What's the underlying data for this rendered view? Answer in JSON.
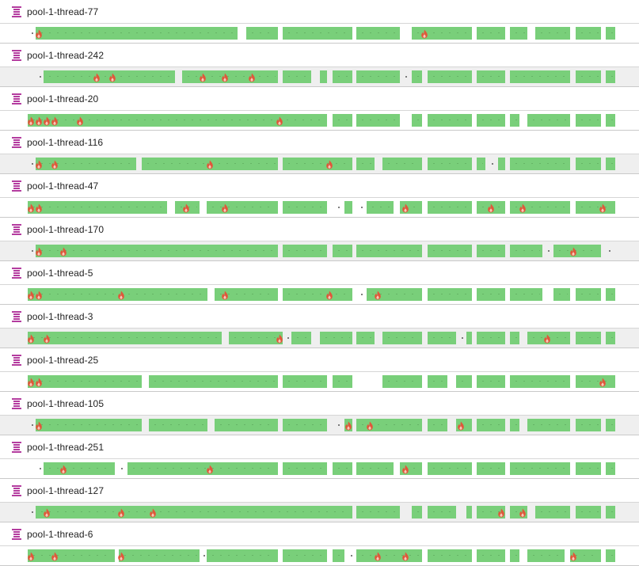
{
  "app": {
    "view": "Thread timeline"
  },
  "colors": {
    "running": "#79cf7a",
    "thread_icon": "#b43c9f",
    "flame": "#e0573a"
  },
  "threads": [
    {
      "name": "pool-1-thread-77",
      "segments": [
        [
          45,
          300
        ],
        [
          311,
          351
        ],
        [
          357,
          445
        ],
        [
          450,
          505
        ],
        [
          520,
          596
        ],
        [
          602,
          638
        ],
        [
          644,
          666
        ],
        [
          676,
          720
        ],
        [
          727,
          759
        ],
        [
          765,
          777
        ]
      ],
      "dots": [
        40
      ],
      "flames": [
        49,
        536
      ]
    },
    {
      "name": "pool-1-thread-242",
      "segments": [
        [
          55,
          221
        ],
        [
          230,
          351
        ],
        [
          357,
          393
        ],
        [
          404,
          413
        ],
        [
          420,
          445
        ],
        [
          450,
          505
        ],
        [
          520,
          533
        ],
        [
          540,
          596
        ],
        [
          602,
          638
        ],
        [
          644,
          720
        ],
        [
          727,
          759
        ],
        [
          765,
          777
        ]
      ],
      "dots": [
        50,
        512
      ],
      "flames": [
        122,
        142,
        256,
        284,
        318
      ]
    },
    {
      "name": "pool-1-thread-20",
      "segments": [
        [
          35,
          413
        ],
        [
          420,
          445
        ],
        [
          450,
          505
        ],
        [
          520,
          533
        ],
        [
          540,
          596
        ],
        [
          602,
          638
        ],
        [
          644,
          656
        ],
        [
          666,
          720
        ],
        [
          727,
          759
        ],
        [
          765,
          777
        ]
      ],
      "dots": [],
      "flames": [
        39,
        49,
        59,
        69,
        101,
        353
      ]
    },
    {
      "name": "pool-1-thread-116",
      "segments": [
        [
          45,
          172
        ],
        [
          179,
          351
        ],
        [
          357,
          445
        ],
        [
          450,
          473
        ],
        [
          483,
          533
        ],
        [
          540,
          596
        ],
        [
          602,
          613
        ],
        [
          629,
          638
        ],
        [
          644,
          720
        ],
        [
          727,
          759
        ],
        [
          765,
          777
        ]
      ],
      "dots": [
        40,
        621
      ],
      "flames": [
        49,
        69,
        265,
        416
      ]
    },
    {
      "name": "pool-1-thread-47",
      "segments": [
        [
          35,
          211
        ],
        [
          221,
          252
        ],
        [
          261,
          351
        ],
        [
          357,
          413
        ],
        [
          435,
          445
        ],
        [
          463,
          497
        ],
        [
          505,
          533
        ],
        [
          540,
          596
        ],
        [
          602,
          638
        ],
        [
          644,
          720
        ],
        [
          727,
          777
        ]
      ],
      "dots": [
        427,
        456
      ],
      "flames": [
        39,
        49,
        235,
        284,
        512,
        620,
        660,
        761
      ]
    },
    {
      "name": "pool-1-thread-170",
      "segments": [
        [
          45,
          351
        ],
        [
          357,
          413
        ],
        [
          420,
          445
        ],
        [
          450,
          533
        ],
        [
          540,
          596
        ],
        [
          602,
          638
        ],
        [
          644,
          685
        ],
        [
          699,
          759
        ]
      ],
      "dots": [
        40,
        692,
        769
      ],
      "flames": [
        49,
        80,
        724
      ]
    },
    {
      "name": "pool-1-thread-5",
      "segments": [
        [
          35,
          262
        ],
        [
          271,
          351
        ],
        [
          357,
          445
        ],
        [
          463,
          533
        ],
        [
          540,
          596
        ],
        [
          602,
          638
        ],
        [
          644,
          685
        ],
        [
          699,
          720
        ],
        [
          727,
          759
        ],
        [
          765,
          777
        ]
      ],
      "dots": [
        456
      ],
      "flames": [
        39,
        49,
        153,
        284,
        416,
        477
      ]
    },
    {
      "name": "pool-1-thread-3",
      "segments": [
        [
          35,
          280
        ],
        [
          289,
          357
        ],
        [
          368,
          393
        ],
        [
          404,
          445
        ],
        [
          450,
          473
        ],
        [
          483,
          533
        ],
        [
          540,
          576
        ],
        [
          589,
          596
        ],
        [
          602,
          638
        ],
        [
          644,
          656
        ],
        [
          666,
          720
        ],
        [
          727,
          759
        ],
        [
          765,
          777
        ]
      ],
      "dots": [
        363,
        583
      ],
      "flames": [
        39,
        59,
        353,
        691
      ]
    },
    {
      "name": "pool-1-thread-25",
      "segments": [
        [
          35,
          179
        ],
        [
          188,
          351
        ],
        [
          357,
          413
        ],
        [
          420,
          445
        ],
        [
          483,
          533
        ],
        [
          540,
          565
        ],
        [
          576,
          596
        ],
        [
          602,
          638
        ],
        [
          644,
          720
        ],
        [
          727,
          777
        ]
      ],
      "dots": [],
      "flames": [
        39,
        49,
        761
      ]
    },
    {
      "name": "pool-1-thread-105",
      "segments": [
        [
          45,
          179
        ],
        [
          188,
          262
        ],
        [
          271,
          351
        ],
        [
          357,
          413
        ],
        [
          435,
          445
        ],
        [
          450,
          533
        ],
        [
          540,
          565
        ],
        [
          576,
          596
        ],
        [
          602,
          638
        ],
        [
          644,
          656
        ],
        [
          666,
          720
        ],
        [
          727,
          759
        ],
        [
          765,
          777
        ]
      ],
      "dots": [
        40,
        427
      ],
      "flames": [
        49,
        440,
        467,
        582
      ]
    },
    {
      "name": "pool-1-thread-251",
      "segments": [
        [
          55,
          145
        ],
        [
          161,
          351
        ],
        [
          357,
          413
        ],
        [
          420,
          445
        ],
        [
          450,
          497
        ],
        [
          505,
          533
        ],
        [
          540,
          596
        ],
        [
          602,
          638
        ],
        [
          644,
          720
        ],
        [
          727,
          759
        ],
        [
          765,
          777
        ]
      ],
      "dots": [
        50,
        153
      ],
      "flames": [
        80,
        265,
        512
      ]
    },
    {
      "name": "pool-1-thread-127",
      "segments": [
        [
          45,
          445
        ],
        [
          450,
          505
        ],
        [
          520,
          533
        ],
        [
          540,
          576
        ],
        [
          589,
          596
        ],
        [
          602,
          638
        ],
        [
          644,
          666
        ],
        [
          676,
          720
        ],
        [
          727,
          759
        ],
        [
          765,
          777
        ]
      ],
      "dots": [
        40
      ],
      "flames": [
        59,
        153,
        193,
        633,
        660
      ]
    },
    {
      "name": "pool-1-thread-6",
      "segments": [
        [
          35,
          145
        ],
        [
          150,
          252
        ],
        [
          261,
          351
        ],
        [
          357,
          413
        ],
        [
          420,
          435
        ],
        [
          450,
          533
        ],
        [
          540,
          596
        ],
        [
          602,
          638
        ],
        [
          644,
          656
        ],
        [
          666,
          713
        ],
        [
          720,
          759
        ],
        [
          765,
          777
        ]
      ],
      "dots": [
        257,
        443
      ],
      "flames": [
        39,
        69,
        153,
        477,
        512,
        724
      ]
    }
  ]
}
